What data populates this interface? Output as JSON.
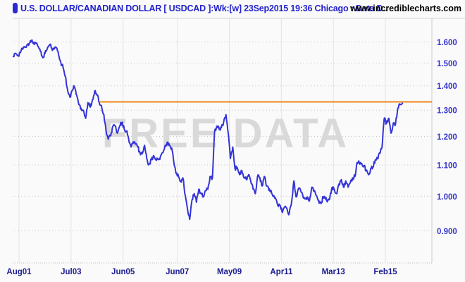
{
  "header": {
    "title": "U.S. DOLLAR/CANADIAN DOLLAR [ USDCAD ]:Wk:[w]  23Sep2015 19:36 Chicago : Data D..",
    "site": "www.incrediblecharts.com"
  },
  "watermark": "FREE DATA",
  "colors": {
    "price_line": "#3434d8",
    "resistance_line": "#ef8818",
    "y_label": "#3535cc",
    "x_label": "#1c1c90",
    "grid_vertical": "#e4e4e4",
    "grid_horizontal": "#c8c8c8",
    "watermark": "#d9d9d9",
    "title_text": "#2222cc",
    "background": "#fafafa"
  },
  "chart_data": {
    "type": "line",
    "title": "U.S. DOLLAR/CANADIAN DOLLAR [ USDCAD ] weekly",
    "x_axis": {
      "ticks": [
        {
          "label": "Aug01",
          "t": 2001.583
        },
        {
          "label": "Jul03",
          "t": 2003.5
        },
        {
          "label": "Jun05",
          "t": 2005.417
        },
        {
          "label": "Jun07",
          "t": 2007.417
        },
        {
          "label": "May09",
          "t": 2009.333
        },
        {
          "label": "Apr11",
          "t": 2011.25
        },
        {
          "label": "Mar13",
          "t": 2013.167
        },
        {
          "label": "Feb15",
          "t": 2015.083
        }
      ],
      "range": [
        2001.35,
        2015.8
      ]
    },
    "y_axis": {
      "scale": "log",
      "ticks": [
        {
          "label": "1.600",
          "value": 1.6
        },
        {
          "label": "1.500",
          "value": 1.5
        },
        {
          "label": "1.400",
          "value": 1.4
        },
        {
          "label": "1.300",
          "value": 1.3
        },
        {
          "label": "1.200",
          "value": 1.2
        },
        {
          "label": "1.100",
          "value": 1.1
        },
        {
          "label": "1.000",
          "value": 1.0
        },
        {
          "label": "0.900",
          "value": 0.9
        }
      ],
      "range": [
        0.875,
        1.665
      ]
    },
    "resistance_line": {
      "value": 1.333,
      "start_t": 2004.57,
      "color": "#ef8818"
    },
    "series": [
      {
        "name": "USDCAD weekly close",
        "color": "#3434d8",
        "points": [
          [
            2001.37,
            1.53
          ],
          [
            2001.46,
            1.545
          ],
          [
            2001.54,
            1.535
          ],
          [
            2001.62,
            1.548
          ],
          [
            2001.71,
            1.565
          ],
          [
            2001.79,
            1.575
          ],
          [
            2001.87,
            1.585
          ],
          [
            2001.96,
            1.593
          ],
          [
            2002.04,
            1.607
          ],
          [
            2002.12,
            1.598
          ],
          [
            2002.21,
            1.592
          ],
          [
            2002.29,
            1.578
          ],
          [
            2002.37,
            1.555
          ],
          [
            2002.46,
            1.525
          ],
          [
            2002.54,
            1.545
          ],
          [
            2002.62,
            1.565
          ],
          [
            2002.71,
            1.585
          ],
          [
            2002.79,
            1.57
          ],
          [
            2002.87,
            1.565
          ],
          [
            2002.96,
            1.572
          ],
          [
            2003.04,
            1.54
          ],
          [
            2003.12,
            1.505
          ],
          [
            2003.21,
            1.478
          ],
          [
            2003.29,
            1.44
          ],
          [
            2003.37,
            1.385
          ],
          [
            2003.46,
            1.352
          ],
          [
            2003.54,
            1.38
          ],
          [
            2003.62,
            1.398
          ],
          [
            2003.71,
            1.36
          ],
          [
            2003.79,
            1.322
          ],
          [
            2003.87,
            1.308
          ],
          [
            2003.96,
            1.298
          ],
          [
            2004.04,
            1.268
          ],
          [
            2004.12,
            1.33
          ],
          [
            2004.21,
            1.312
          ],
          [
            2004.29,
            1.342
          ],
          [
            2004.37,
            1.378
          ],
          [
            2004.46,
            1.36
          ],
          [
            2004.54,
            1.33
          ],
          [
            2004.62,
            1.318
          ],
          [
            2004.71,
            1.282
          ],
          [
            2004.79,
            1.222
          ],
          [
            2004.87,
            1.19
          ],
          [
            2004.96,
            1.202
          ],
          [
            2005.04,
            1.238
          ],
          [
            2005.12,
            1.24
          ],
          [
            2005.21,
            1.212
          ],
          [
            2005.29,
            1.238
          ],
          [
            2005.37,
            1.252
          ],
          [
            2005.46,
            1.228
          ],
          [
            2005.54,
            1.22
          ],
          [
            2005.62,
            1.192
          ],
          [
            2005.71,
            1.162
          ],
          [
            2005.79,
            1.18
          ],
          [
            2005.87,
            1.172
          ],
          [
            2005.96,
            1.162
          ],
          [
            2006.04,
            1.142
          ],
          [
            2006.12,
            1.138
          ],
          [
            2006.21,
            1.168
          ],
          [
            2006.29,
            1.122
          ],
          [
            2006.37,
            1.102
          ],
          [
            2006.46,
            1.118
          ],
          [
            2006.54,
            1.132
          ],
          [
            2006.62,
            1.118
          ],
          [
            2006.71,
            1.118
          ],
          [
            2006.79,
            1.128
          ],
          [
            2006.87,
            1.142
          ],
          [
            2006.96,
            1.165
          ],
          [
            2007.04,
            1.178
          ],
          [
            2007.12,
            1.168
          ],
          [
            2007.21,
            1.158
          ],
          [
            2007.29,
            1.108
          ],
          [
            2007.37,
            1.072
          ],
          [
            2007.46,
            1.062
          ],
          [
            2007.54,
            1.048
          ],
          [
            2007.62,
            1.058
          ],
          [
            2007.71,
            1.002
          ],
          [
            2007.79,
            0.962
          ],
          [
            2007.87,
            0.932
          ],
          [
            2007.96,
            0.99
          ],
          [
            2008.04,
            1.008
          ],
          [
            2008.12,
            0.982
          ],
          [
            2008.21,
            1.022
          ],
          [
            2008.29,
            1.008
          ],
          [
            2008.37,
            0.998
          ],
          [
            2008.46,
            1.018
          ],
          [
            2008.54,
            1.022
          ],
          [
            2008.62,
            1.062
          ],
          [
            2008.71,
            1.058
          ],
          [
            2008.79,
            1.218
          ],
          [
            2008.87,
            1.238
          ],
          [
            2008.96,
            1.225
          ],
          [
            2009.04,
            1.232
          ],
          [
            2009.12,
            1.252
          ],
          [
            2009.21,
            1.282
          ],
          [
            2009.29,
            1.212
          ],
          [
            2009.37,
            1.122
          ],
          [
            2009.46,
            1.162
          ],
          [
            2009.54,
            1.088
          ],
          [
            2009.62,
            1.092
          ],
          [
            2009.71,
            1.068
          ],
          [
            2009.79,
            1.082
          ],
          [
            2009.87,
            1.058
          ],
          [
            2009.96,
            1.052
          ],
          [
            2010.04,
            1.068
          ],
          [
            2010.12,
            1.048
          ],
          [
            2010.21,
            1.022
          ],
          [
            2010.29,
            1.008
          ],
          [
            2010.37,
            1.062
          ],
          [
            2010.46,
            1.058
          ],
          [
            2010.54,
            1.032
          ],
          [
            2010.62,
            1.062
          ],
          [
            2010.71,
            1.032
          ],
          [
            2010.79,
            1.018
          ],
          [
            2010.87,
            1.018
          ],
          [
            2010.96,
            1.002
          ],
          [
            2011.04,
            0.992
          ],
          [
            2011.12,
            0.972
          ],
          [
            2011.21,
            0.972
          ],
          [
            2011.29,
            0.952
          ],
          [
            2011.37,
            0.968
          ],
          [
            2011.46,
            0.962
          ],
          [
            2011.54,
            0.948
          ],
          [
            2011.62,
            0.978
          ],
          [
            2011.71,
            1.048
          ],
          [
            2011.79,
            0.998
          ],
          [
            2011.87,
            1.022
          ],
          [
            2011.96,
            1.018
          ],
          [
            2012.04,
            1.002
          ],
          [
            2012.12,
            0.992
          ],
          [
            2012.21,
            0.998
          ],
          [
            2012.29,
            0.988
          ],
          [
            2012.37,
            1.028
          ],
          [
            2012.46,
            1.018
          ],
          [
            2012.54,
            1.002
          ],
          [
            2012.62,
            0.988
          ],
          [
            2012.71,
            0.978
          ],
          [
            2012.79,
            0.998
          ],
          [
            2012.87,
            0.992
          ],
          [
            2012.96,
            0.988
          ],
          [
            2013.04,
            0.998
          ],
          [
            2013.12,
            1.028
          ],
          [
            2013.21,
            1.018
          ],
          [
            2013.29,
            1.008
          ],
          [
            2013.37,
            1.038
          ],
          [
            2013.46,
            1.052
          ],
          [
            2013.54,
            1.028
          ],
          [
            2013.62,
            1.048
          ],
          [
            2013.71,
            1.028
          ],
          [
            2013.79,
            1.042
          ],
          [
            2013.87,
            1.058
          ],
          [
            2013.96,
            1.062
          ],
          [
            2014.04,
            1.108
          ],
          [
            2014.12,
            1.108
          ],
          [
            2014.21,
            1.105
          ],
          [
            2014.29,
            1.098
          ],
          [
            2014.37,
            1.082
          ],
          [
            2014.46,
            1.068
          ],
          [
            2014.54,
            1.088
          ],
          [
            2014.62,
            1.092
          ],
          [
            2014.71,
            1.118
          ],
          [
            2014.79,
            1.122
          ],
          [
            2014.87,
            1.142
          ],
          [
            2014.96,
            1.162
          ],
          [
            2015.04,
            1.268
          ],
          [
            2015.12,
            1.248
          ],
          [
            2015.21,
            1.268
          ],
          [
            2015.29,
            1.212
          ],
          [
            2015.37,
            1.248
          ],
          [
            2015.46,
            1.248
          ],
          [
            2015.54,
            1.308
          ],
          [
            2015.62,
            1.322
          ],
          [
            2015.71,
            1.328
          ]
        ]
      }
    ]
  }
}
